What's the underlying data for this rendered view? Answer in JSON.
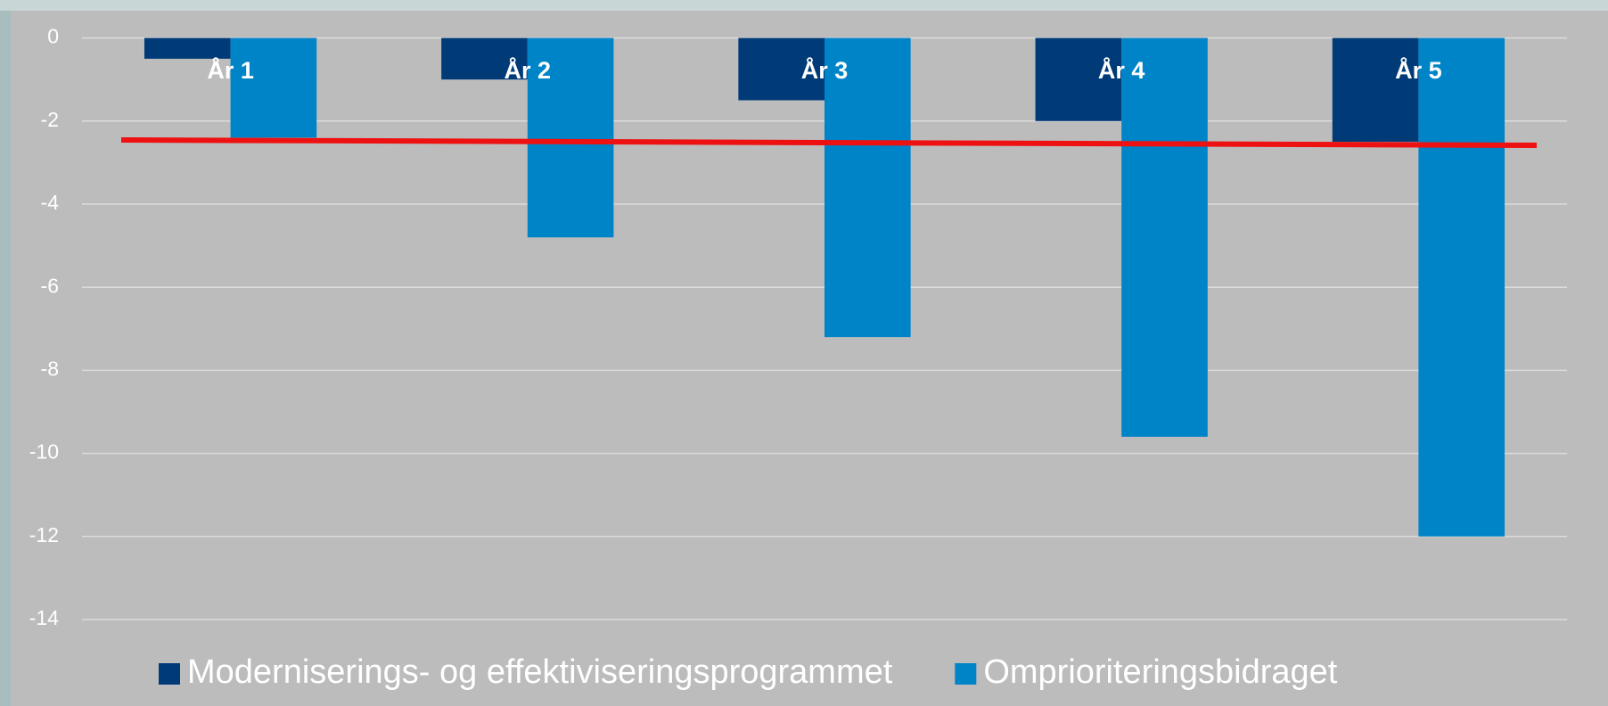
{
  "chart_data": {
    "type": "bar",
    "categories": [
      "År 1",
      "År 2",
      "År 3",
      "År 4",
      "År 5"
    ],
    "series": [
      {
        "name": "Moderniserings- og effektiviseringsprogrammet",
        "color": "#003b78",
        "values": [
          -0.5,
          -1,
          -1.5,
          -2,
          -2.5
        ]
      },
      {
        "name": "Omprioriteringsbidraget",
        "color": "#0084c8",
        "values": [
          -2.4,
          -4.8,
          -7.2,
          -9.6,
          -12
        ]
      }
    ],
    "ylim": [
      -14,
      0
    ],
    "yticks": [
      0,
      -2,
      -4,
      -6,
      -8,
      -10,
      -12,
      -14
    ],
    "grid": true
  }
}
